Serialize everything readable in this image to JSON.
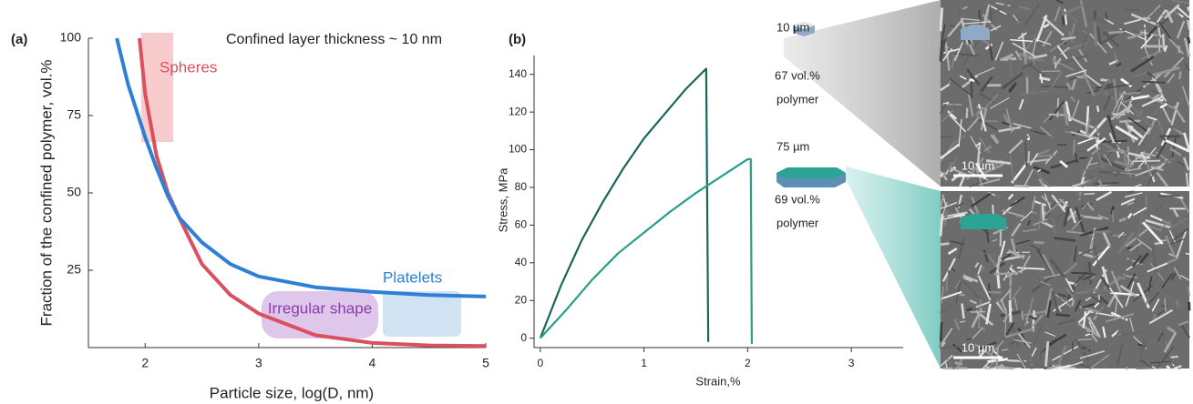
{
  "chart_data": [
    {
      "type": "line",
      "panel": "(a)",
      "title": "Confined layer thickness ~ 10 nm",
      "x_label": "Particle size, log(D, nm)",
      "y_label": "Fraction of the confined polymer, vol.%",
      "xlim": [
        1.5,
        5
      ],
      "ylim": [
        0,
        100
      ],
      "xticks": [
        2,
        3,
        4,
        5
      ],
      "yticks": [
        25,
        50,
        75,
        100
      ],
      "annotations": [
        "Irregular shape"
      ],
      "series": [
        {
          "name": "Spheres",
          "color": "#d9505e",
          "x": [
            1.95,
            2,
            2.1,
            2.2,
            2.3,
            2.5,
            2.75,
            3,
            3.5,
            4,
            4.5,
            5
          ],
          "values": [
            100,
            82,
            62,
            50,
            42,
            27,
            17,
            11,
            4,
            1.5,
            0.7,
            0.5
          ]
        },
        {
          "name": "Platelets",
          "color": "#2e7fd6",
          "x": [
            1.75,
            1.85,
            2,
            2.1,
            2.2,
            2.3,
            2.5,
            2.75,
            3,
            3.5,
            4,
            4.5,
            5
          ],
          "values": [
            100,
            85,
            68,
            58,
            49,
            42,
            34,
            27,
            23,
            19.5,
            18,
            17,
            16.5
          ]
        }
      ]
    },
    {
      "type": "line",
      "panel": "(b)",
      "x_label": "Strain,%",
      "y_label": "Stress, MPa",
      "xlim": [
        -0.06,
        3.5
      ],
      "ylim": [
        -5,
        150
      ],
      "xticks": [
        0,
        1,
        2,
        3
      ],
      "yticks": [
        0,
        20,
        40,
        60,
        80,
        100,
        120,
        140
      ],
      "annotations": [
        "67 vol.%",
        "polymer",
        "69  vol.%",
        "polymer"
      ],
      "series": [
        {
          "name": "10 µm",
          "color": "#17685a",
          "x": [
            0,
            0.2,
            0.4,
            0.6,
            0.8,
            1.0,
            1.2,
            1.4,
            1.6,
            1.62
          ],
          "values": [
            0,
            28,
            52,
            72,
            90,
            106,
            119,
            132,
            143,
            -2
          ]
        },
        {
          "name": "75 µm",
          "color": "#2a9d8c",
          "x": [
            0,
            0.25,
            0.5,
            0.75,
            1.0,
            1.25,
            1.5,
            1.75,
            2.0,
            2.03,
            2.04
          ],
          "values": [
            0,
            15,
            31,
            45,
            56,
            67,
            77,
            86,
            95,
            95,
            -3
          ]
        }
      ]
    }
  ],
  "images": [
    {
      "scale_bar": "10 µm"
    },
    {
      "scale_bar": "10 µm"
    }
  ]
}
